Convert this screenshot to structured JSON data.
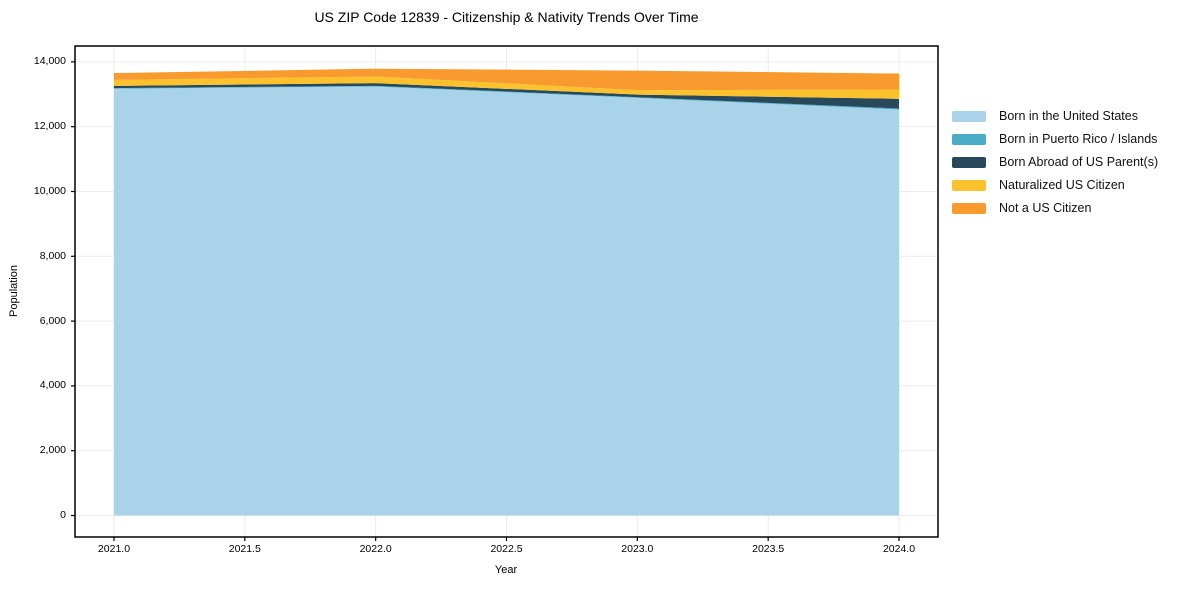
{
  "title": "US ZIP Code 12839 - Citizenship & Nativity Trends Over Time",
  "chart_data": {
    "type": "area",
    "stacked": true,
    "title": "US ZIP Code 12839 - Citizenship & Nativity Trends Over Time",
    "xlabel": "Year",
    "ylabel": "Population",
    "x": [
      2021,
      2022,
      2023,
      2024
    ],
    "series": [
      {
        "name": "Born in the United States",
        "color": "#a8d3e8",
        "values": [
          13170,
          13240,
          12890,
          12530
        ]
      },
      {
        "name": "Born in Puerto Rico / Islands",
        "color": "#4aacc9",
        "values": [
          20,
          20,
          20,
          30
        ]
      },
      {
        "name": "Born Abroad of US Parent(s)",
        "color": "#28495c",
        "values": [
          70,
          85,
          80,
          300
        ]
      },
      {
        "name": "Naturalized US Citizen",
        "color": "#fcc22e",
        "values": [
          185,
          205,
          135,
          290
        ]
      },
      {
        "name": "Not a US Citizen",
        "color": "#f89a2e",
        "values": [
          210,
          240,
          605,
          490
        ]
      }
    ],
    "xlim": [
      2020.851,
      2024.149
    ],
    "ylim": [
      -663,
      14490
    ],
    "xticks": [
      2021.0,
      2021.5,
      2022.0,
      2022.5,
      2023.0,
      2023.5,
      2024.0
    ],
    "xtick_labels": [
      "2021.0",
      "2021.5",
      "2022.0",
      "2022.5",
      "2023.0",
      "2023.5",
      "2024.0"
    ],
    "yticks": [
      0,
      2000,
      4000,
      6000,
      8000,
      10000,
      12000,
      14000
    ],
    "ytick_labels": [
      "0",
      "2,000",
      "4,000",
      "6,000",
      "8,000",
      "10,000",
      "12,000",
      "14,000"
    ],
    "grid": true,
    "legend_position": "right",
    "grid_color": "#ebebeb",
    "spine_color": "#000000",
    "background_color": "#ffffff"
  }
}
